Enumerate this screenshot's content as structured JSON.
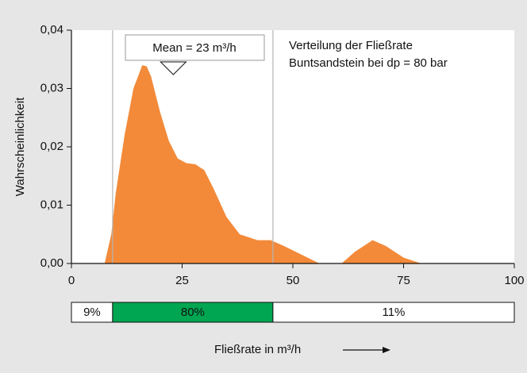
{
  "chart_data": {
    "type": "area",
    "color": "#f28a3a",
    "x": [
      7.5,
      9,
      10,
      12,
      14,
      16,
      17,
      18,
      20,
      22,
      24,
      26,
      28,
      30,
      32,
      35,
      38,
      42,
      45,
      48,
      52,
      56,
      61,
      64,
      68,
      71,
      75,
      79
    ],
    "values": [
      0,
      0.005,
      0.012,
      0.022,
      0.03,
      0.034,
      0.0338,
      0.032,
      0.026,
      0.021,
      0.018,
      0.0172,
      0.017,
      0.016,
      0.013,
      0.008,
      0.005,
      0.004,
      0.004,
      0.003,
      0.0015,
      0,
      0,
      0.002,
      0.004,
      0.003,
      0.001,
      0
    ],
    "xlim": [
      0,
      100
    ],
    "ylim": [
      0,
      0.04
    ],
    "xticks": [
      0,
      25,
      50,
      75,
      100
    ],
    "yticks": [
      {
        "value": 0,
        "label": "0,00"
      },
      {
        "value": 0.01,
        "label": "0,01"
      },
      {
        "value": 0.02,
        "label": "0,02"
      },
      {
        "value": 0.03,
        "label": "0,03"
      },
      {
        "value": 0.04,
        "label": "0,04"
      }
    ],
    "ylabel": "Wahrscheinlichkeit",
    "xlabel": "Fließrate in m³/h",
    "annotation": {
      "text": "Mean = 23 m³/h",
      "x": 23
    },
    "notes": [
      "Verteilung der Fließrate",
      "Buntsandstein bei dp = 80 bar"
    ],
    "markers": [
      9.3,
      45.5
    ],
    "shares": {
      "values": [
        9,
        80,
        11
      ],
      "value_labels": [
        "9%",
        "80%",
        "11%"
      ],
      "colors": [
        "#ffffff",
        "#00a651",
        "#ffffff"
      ]
    }
  }
}
